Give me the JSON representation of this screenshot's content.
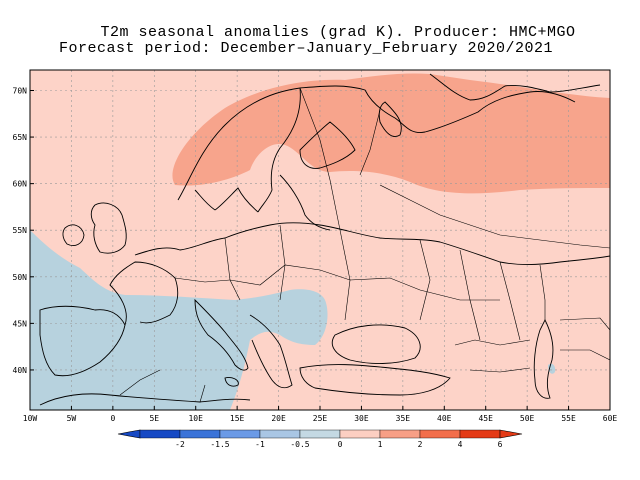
{
  "header": {
    "title_line1": "T2m seasonal anomalies (grad K). Producer: HMC+MGO",
    "title_line2": "Forecast period: December–January_February 2020/2021"
  },
  "map": {
    "lat_labels": [
      "70N",
      "65N",
      "60N",
      "55N",
      "50N",
      "45N",
      "40N"
    ],
    "lon_labels": [
      "10W",
      "5W",
      "0",
      "5E",
      "10E",
      "15E",
      "20E",
      "25E",
      "30E",
      "35E",
      "40E",
      "45E",
      "50E",
      "55E",
      "60E"
    ]
  },
  "legend": {
    "labels": [
      "-2",
      "-1.5",
      "-1",
      "-0.5",
      "0",
      "1",
      "2",
      "4",
      "6"
    ],
    "colors": [
      "#1649c4",
      "#3a73d8",
      "#6b9ae6",
      "#a9c6e4",
      "#c4d9e3",
      "#fccfc2",
      "#f79f86",
      "#f26e4b",
      "#e43a16"
    ],
    "anomaly_colors": {
      "negative": "#b7d2de",
      "positive_weak": "#fdd3c8",
      "positive_mid": "#f7a48c"
    }
  }
}
